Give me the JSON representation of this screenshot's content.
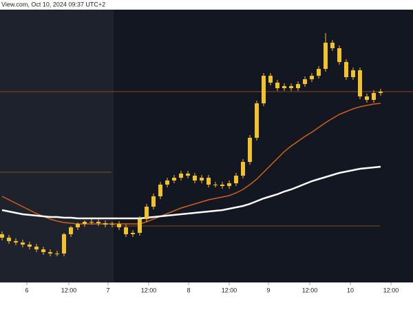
{
  "chart_data": {
    "type": "candlestick",
    "header": "View.com, Oct 10, 2024 09:37 UTC+2",
    "open": [
      70,
      65,
      60,
      58,
      55,
      52,
      48,
      44,
      42,
      42,
      70,
      80,
      85,
      88,
      88,
      86,
      84,
      85,
      80,
      70,
      72,
      92,
      110,
      125,
      142,
      148,
      152,
      158,
      155,
      148,
      152,
      142,
      142,
      140,
      144,
      155,
      175,
      210,
      260,
      300,
      290,
      282,
      285,
      282,
      288,
      295,
      300,
      310,
      348,
      340,
      320,
      298,
      308,
      270,
      265,
      275
    ],
    "high": [
      74,
      69,
      64,
      62,
      59,
      56,
      52,
      48,
      46,
      72,
      82,
      87,
      90,
      92,
      92,
      90,
      88,
      89,
      84,
      76,
      96,
      114,
      129,
      146,
      152,
      156,
      162,
      162,
      159,
      156,
      156,
      146,
      146,
      148,
      159,
      179,
      214,
      264,
      304,
      304,
      294,
      289,
      289,
      292,
      299,
      304,
      314,
      362,
      352,
      344,
      324,
      312,
      312,
      274,
      279,
      281
    ],
    "low": [
      61,
      56,
      54,
      51,
      48,
      44,
      40,
      38,
      38,
      38,
      66,
      76,
      81,
      84,
      82,
      80,
      80,
      76,
      66,
      66,
      68,
      88,
      106,
      121,
      138,
      144,
      148,
      151,
      144,
      144,
      138,
      138,
      136,
      136,
      140,
      151,
      171,
      206,
      256,
      286,
      278,
      278,
      278,
      278,
      284,
      291,
      296,
      306,
      336,
      316,
      294,
      294,
      266,
      261,
      261,
      271
    ],
    "close": [
      65,
      60,
      58,
      55,
      52,
      48,
      44,
      42,
      42,
      70,
      80,
      85,
      88,
      88,
      86,
      84,
      85,
      80,
      70,
      72,
      92,
      110,
      125,
      142,
      148,
      152,
      158,
      155,
      148,
      152,
      142,
      142,
      140,
      144,
      155,
      175,
      210,
      260,
      300,
      290,
      282,
      285,
      282,
      288,
      295,
      300,
      310,
      348,
      340,
      320,
      298,
      308,
      270,
      265,
      275,
      277
    ],
    "color": "#f2c12e",
    "series": [
      {
        "color": "#d2601a",
        "values": [
          125,
          120,
          115,
          110,
          105,
          100,
          96,
          92,
          89,
          87,
          86,
          85,
          85,
          85,
          85,
          85,
          85,
          85,
          85,
          85,
          85,
          88,
          92,
          96,
          100,
          104,
          108,
          111,
          114,
          117,
          120,
          122,
          124,
          126,
          130,
          135,
          142,
          150,
          160,
          170,
          180,
          190,
          198,
          205,
          212,
          218,
          225,
          232,
          238,
          244,
          248,
          252,
          255,
          257,
          259,
          260
        ]
      },
      {
        "color": "#ffffff",
        "values": [
          105,
          103,
          101,
          99,
          98,
          97,
          96,
          95,
          95,
          94,
          94,
          93,
          93,
          93,
          93,
          93,
          93,
          93,
          93,
          93,
          93,
          94,
          95,
          96,
          97,
          98,
          99,
          100,
          101,
          102,
          103,
          104,
          105,
          107,
          109,
          111,
          114,
          118,
          122,
          125,
          128,
          132,
          135,
          139,
          143,
          147,
          150,
          153,
          156,
          159,
          161,
          163,
          165,
          166,
          167,
          168
        ]
      }
    ],
    "levels": [
      277,
      160,
      82
    ],
    "level_color": "#8a4a22",
    "xlim": [
      -0.3,
      59.7
    ],
    "ylim": [
      0,
      400
    ],
    "xticks": [
      {
        "value": 3.6,
        "label": "6"
      },
      {
        "value": 9.7,
        "label": "12:00"
      },
      {
        "value": 15.4,
        "label": "7"
      },
      {
        "value": 21.3,
        "label": "12:00"
      },
      {
        "value": 27.1,
        "label": "8"
      },
      {
        "value": 33,
        "label": "12:00"
      },
      {
        "value": 38.7,
        "label": "9"
      },
      {
        "value": 44.7,
        "label": "12:00"
      },
      {
        "value": 50.6,
        "label": "10"
      },
      {
        "value": 56.5,
        "label": "12:00"
      }
    ]
  }
}
